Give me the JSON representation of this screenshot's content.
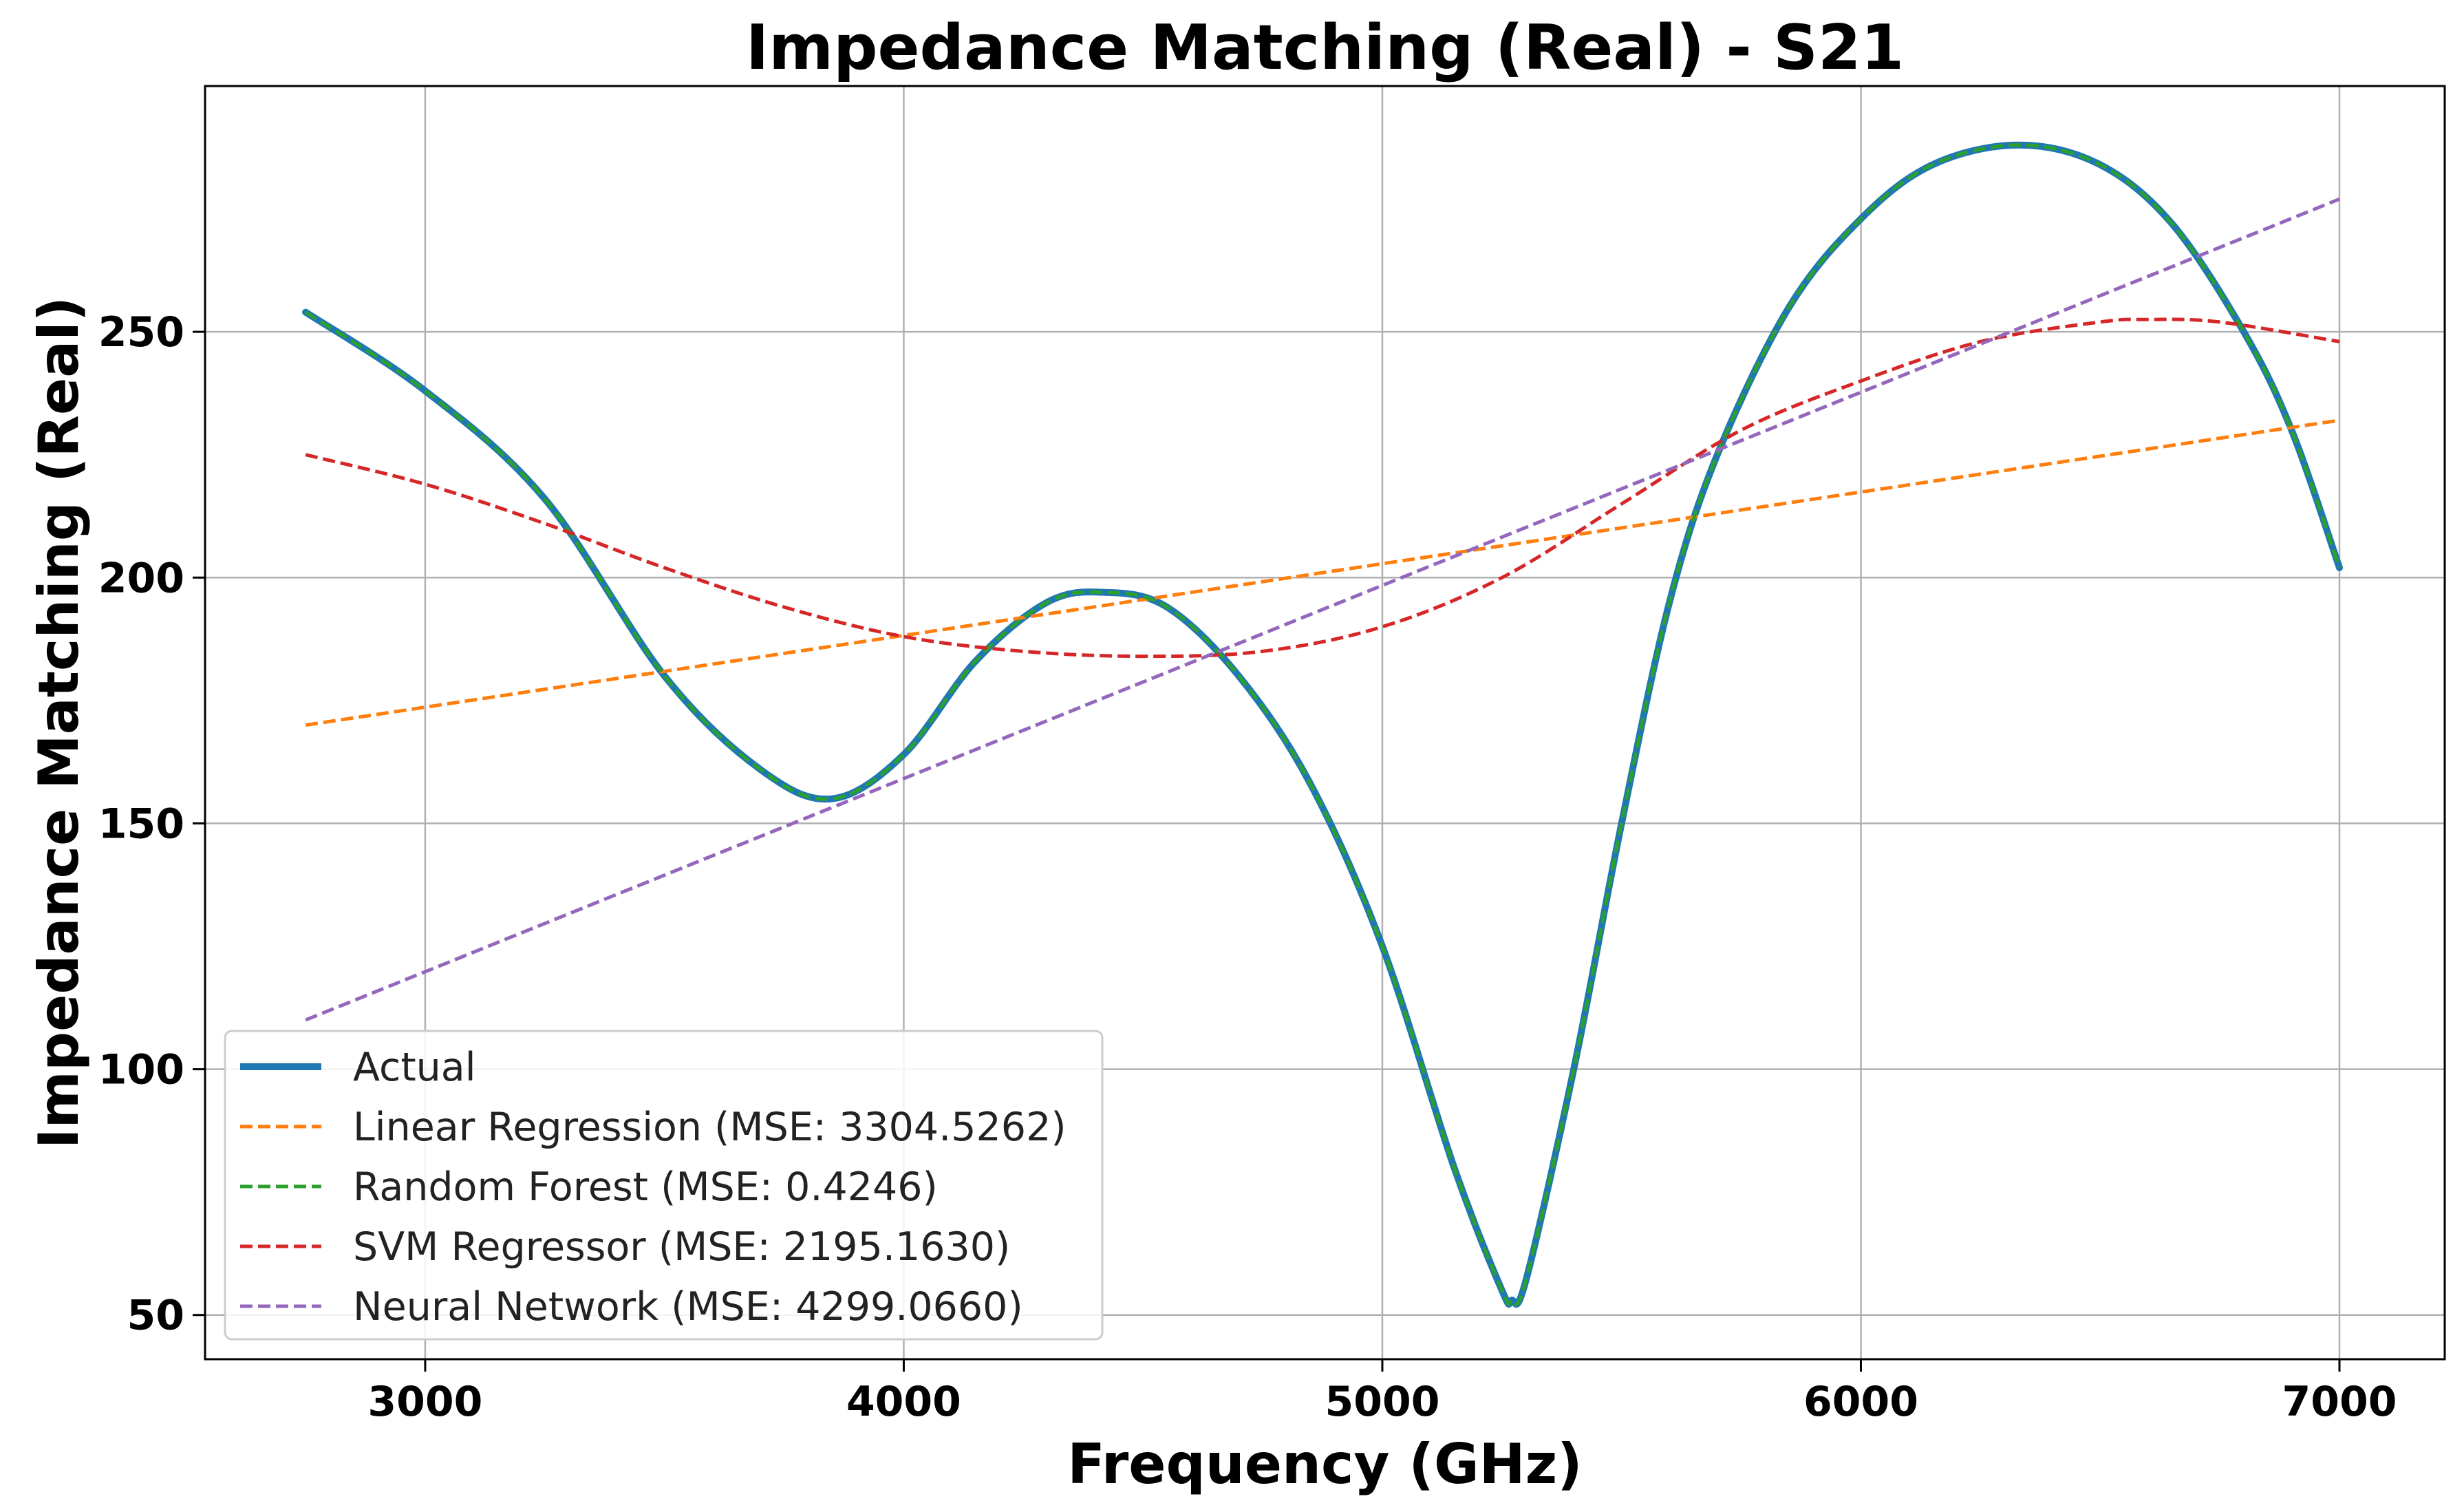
{
  "chart_data": {
    "type": "line",
    "title": "Impedance Matching (Real) - S21",
    "xlabel": "Frequency (GHz)",
    "ylabel": "Impedance Matching (Real)",
    "xlim": [
      2540,
      7220
    ],
    "ylim": [
      41,
      300
    ],
    "xticks": [
      3000,
      4000,
      5000,
      6000,
      7000
    ],
    "yticks": [
      50,
      100,
      150,
      200,
      250
    ],
    "grid": true,
    "legend_position": "lower-left",
    "series": [
      {
        "name": "Actual",
        "color": "#1f77b4",
        "style": "solid",
        "x": [
          2750,
          3000,
          3250,
          3500,
          3700,
          3850,
          4000,
          4150,
          4300,
          4420,
          4550,
          4700,
          4850,
          5000,
          5150,
          5250,
          5270,
          5300,
          5400,
          5500,
          5600,
          5700,
          5850,
          6000,
          6150,
          6330,
          6500,
          6650,
          6800,
          6900,
          7000
        ],
        "y": [
          254,
          238,
          216,
          180,
          161,
          155,
          164,
          183,
          195,
          197,
          194,
          180,
          158,
          125,
          80,
          55,
          53,
          57,
          100,
          150,
          195,
          225,
          255,
          273,
          284,
          288,
          284,
          272,
          250,
          230,
          202
        ]
      },
      {
        "name": "Linear Regression (MSE: 3304.5262)",
        "color": "#ff7f0e",
        "style": "dashed",
        "x": [
          2750,
          7000
        ],
        "y": [
          170,
          232
        ]
      },
      {
        "name": "Random Forest (MSE: 0.4246)",
        "color": "#2ca02c",
        "style": "dashed",
        "x": [
          2750,
          3000,
          3250,
          3500,
          3700,
          3850,
          4000,
          4150,
          4300,
          4420,
          4550,
          4700,
          4850,
          5000,
          5150,
          5250,
          5270,
          5300,
          5400,
          5500,
          5600,
          5700,
          5850,
          6000,
          6150,
          6330,
          6500,
          6650,
          6800,
          6900,
          7000
        ],
        "y": [
          254,
          238,
          216,
          180,
          161,
          155,
          164,
          183,
          195,
          197,
          194,
          180,
          158,
          125,
          80,
          55,
          53,
          57,
          100,
          150,
          195,
          225,
          255,
          273,
          284,
          288,
          284,
          272,
          250,
          230,
          202
        ]
      },
      {
        "name": "SVM Regressor (MSE: 2195.1630)",
        "color": "#d62728",
        "style": "dashed",
        "x": [
          2750,
          3000,
          3250,
          3500,
          3750,
          4000,
          4250,
          4500,
          4750,
          5000,
          5250,
          5500,
          5750,
          6000,
          6250,
          6500,
          6600,
          6750,
          7000
        ],
        "y": [
          225,
          219,
          211,
          202,
          194,
          188,
          185,
          184,
          185,
          190,
          200,
          215,
          230,
          240,
          248,
          252,
          252.5,
          252,
          248
        ]
      },
      {
        "name": "Neural Network (MSE: 4299.0660)",
        "color": "#9467bd",
        "style": "dashed",
        "x": [
          2750,
          7000
        ],
        "y": [
          110,
          277
        ]
      }
    ]
  }
}
